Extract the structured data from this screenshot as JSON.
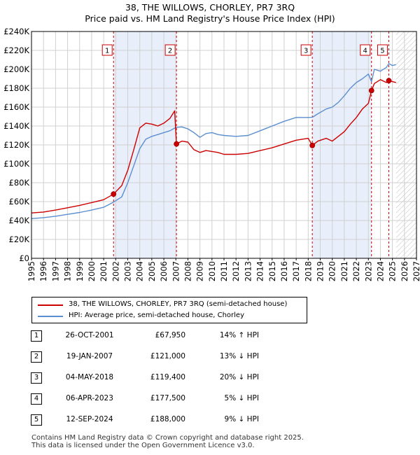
{
  "chart_data": {
    "type": "line",
    "title": "38, THE WILLOWS, CHORLEY, PR7 3RQ",
    "subtitle": "Price paid vs. HM Land Registry's House Price Index (HPI)",
    "xlim": [
      1995,
      2027
    ],
    "ylim": [
      0,
      240000
    ],
    "x_ticks": [
      1995,
      1996,
      1997,
      1998,
      1999,
      2000,
      2001,
      2002,
      2003,
      2004,
      2005,
      2006,
      2007,
      2008,
      2009,
      2010,
      2011,
      2012,
      2013,
      2014,
      2015,
      2016,
      2017,
      2018,
      2019,
      2020,
      2021,
      2022,
      2023,
      2024,
      2025,
      2026,
      2027
    ],
    "y_ticks": [
      {
        "value": 0,
        "label": "£0"
      },
      {
        "value": 20000,
        "label": "£20K"
      },
      {
        "value": 40000,
        "label": "£40K"
      },
      {
        "value": 60000,
        "label": "£60K"
      },
      {
        "value": 80000,
        "label": "£80K"
      },
      {
        "value": 100000,
        "label": "£100K"
      },
      {
        "value": 120000,
        "label": "£120K"
      },
      {
        "value": 140000,
        "label": "£140K"
      },
      {
        "value": 160000,
        "label": "£160K"
      },
      {
        "value": 180000,
        "label": "£180K"
      },
      {
        "value": 200000,
        "label": "£200K"
      },
      {
        "value": 220000,
        "label": "£220K"
      },
      {
        "value": 240000,
        "label": "£240K"
      }
    ],
    "grid": true,
    "shaded_periods": [
      [
        2001.82,
        2007.05
      ],
      [
        2018.34,
        2023.26
      ]
    ],
    "future_hatch_start": 2025.3,
    "series": [
      {
        "name": "38, THE WILLOWS, CHORLEY, PR7 3RQ (semi-detached house)",
        "color": "#cc0000",
        "x": [
          1995.0,
          1996.0,
          1997.0,
          1998.0,
          1999.0,
          2000.0,
          2001.0,
          2001.82,
          2002.5,
          2003.0,
          2003.5,
          2004.0,
          2004.5,
          2005.0,
          2005.5,
          2006.0,
          2006.5,
          2006.9,
          2007.05,
          2007.5,
          2008.0,
          2008.5,
          2009.0,
          2009.5,
          2010.0,
          2010.5,
          2011.0,
          2012.0,
          2013.0,
          2014.0,
          2015.0,
          2016.0,
          2017.0,
          2018.0,
          2018.34,
          2018.8,
          2019.5,
          2020.0,
          2020.5,
          2021.0,
          2021.5,
          2022.0,
          2022.5,
          2023.0,
          2023.26,
          2023.5,
          2024.0,
          2024.5,
          2024.7,
          2025.0,
          2025.3
        ],
        "values": [
          48000,
          49000,
          51000,
          53500,
          56000,
          59000,
          62000,
          67950,
          77000,
          93000,
          115000,
          138000,
          143000,
          142000,
          140000,
          143000,
          148000,
          156000,
          121000,
          124000,
          123000,
          115000,
          112000,
          114000,
          113000,
          112000,
          110000,
          110000,
          111000,
          114000,
          117000,
          121000,
          125000,
          127000,
          119400,
          124000,
          127000,
          124000,
          129000,
          134000,
          142000,
          149000,
          158000,
          164000,
          177500,
          185000,
          189000,
          186000,
          188000,
          187000,
          186000
        ]
      },
      {
        "name": "HPI: Average price, semi-detached house, Chorley",
        "color": "#5b8fd1",
        "x": [
          1995.0,
          1996.0,
          1997.0,
          1998.0,
          1999.0,
          2000.0,
          2001.0,
          2001.82,
          2002.5,
          2003.0,
          2003.5,
          2004.0,
          2004.5,
          2005.0,
          2005.5,
          2006.0,
          2006.5,
          2007.0,
          2007.5,
          2008.0,
          2008.5,
          2009.0,
          2009.5,
          2010.0,
          2010.5,
          2011.0,
          2012.0,
          2013.0,
          2014.0,
          2015.0,
          2016.0,
          2017.0,
          2018.0,
          2018.34,
          2018.8,
          2019.5,
          2020.0,
          2020.5,
          2021.0,
          2021.5,
          2022.0,
          2022.5,
          2023.0,
          2023.26,
          2023.5,
          2024.0,
          2024.5,
          2024.7,
          2025.0,
          2025.3
        ],
        "values": [
          42000,
          43000,
          44500,
          46500,
          48500,
          51000,
          54000,
          59500,
          65000,
          80000,
          98000,
          116000,
          126000,
          129000,
          131000,
          133000,
          135000,
          138500,
          139000,
          137000,
          133000,
          128000,
          132000,
          133000,
          131000,
          130000,
          129000,
          130000,
          135000,
          140000,
          145000,
          149000,
          149000,
          149200,
          153000,
          158000,
          160000,
          165000,
          172000,
          180000,
          186000,
          190000,
          195000,
          187000,
          200000,
          198000,
          202000,
          206000,
          204000,
          205000
        ]
      }
    ],
    "sales": [
      {
        "id": "1",
        "x": 2001.82,
        "value": 67950
      },
      {
        "id": "2",
        "x": 2007.05,
        "value": 121000
      },
      {
        "id": "3",
        "x": 2018.34,
        "value": 119400
      },
      {
        "id": "4",
        "x": 2023.26,
        "value": 177500
      },
      {
        "id": "5",
        "x": 2024.7,
        "value": 188000
      }
    ]
  },
  "legend": {
    "property": "38, THE WILLOWS, CHORLEY, PR7 3RQ (semi-detached house)",
    "hpi": "HPI: Average price, semi-detached house, Chorley"
  },
  "sales_table": [
    {
      "num": "1",
      "date": "26-OCT-2001",
      "price": "£67,950",
      "hpi": "14% ↑ HPI"
    },
    {
      "num": "2",
      "date": "19-JAN-2007",
      "price": "£121,000",
      "hpi": "13% ↓ HPI"
    },
    {
      "num": "3",
      "date": "04-MAY-2018",
      "price": "£119,400",
      "hpi": "20% ↓ HPI"
    },
    {
      "num": "4",
      "date": "06-APR-2023",
      "price": "£177,500",
      "hpi": "5% ↓ HPI"
    },
    {
      "num": "5",
      "date": "12-SEP-2024",
      "price": "£188,000",
      "hpi": "9% ↓ HPI"
    }
  ],
  "footer": {
    "line1": "Contains HM Land Registry data © Crown copyright and database right 2025.",
    "line2": "This data is licensed under the Open Government Licence v3.0."
  },
  "colors": {
    "property_line": "#cc0000",
    "hpi_line": "#5b8fd1",
    "shade": "#e8eefa",
    "grid": "#d0d0d0"
  }
}
